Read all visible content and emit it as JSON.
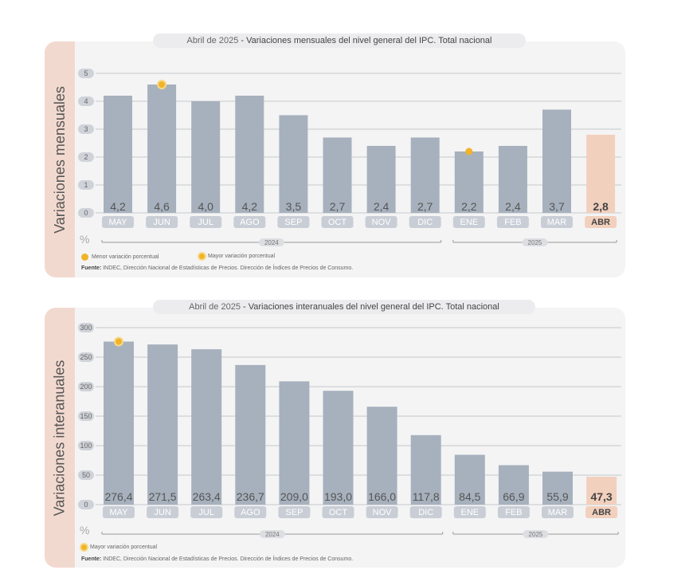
{
  "charts": [
    {
      "title_date": "Abril de 2025",
      "title_text": " - Variaciones mensuales del nivel general del IPC. Total nacional",
      "side_label": "Variaciones mensuales",
      "unit_label": "%",
      "legend_min": "Menor variación porcentual",
      "legend_max": "Mayor variación porcentual",
      "source_label": "Fuente:",
      "source_text": " INDEC, Dirección Nacional de Estadísticas de Precios. Dirección de Índices de Precios de Consumo.",
      "year_labels": [
        "2024",
        "2025"
      ]
    },
    {
      "title_date": "Abril de 2025",
      "title_text": " - Variaciones interanuales del nivel general del IPC. Total nacional",
      "side_label": "Variaciones interanuales",
      "unit_label": "%",
      "legend_max": "Mayor variación porcentual",
      "source_label": "Fuente:",
      "source_text": " INDEC, Dirección Nacional de Estadísticas de Precios. Dirección de Índices de Precios de Consumo.",
      "year_labels": [
        "2024",
        "2025"
      ]
    }
  ],
  "chart_data": [
    {
      "type": "bar",
      "title": "Abril de 2025 - Variaciones mensuales del nivel general del IPC. Total nacional",
      "ylabel": "Variaciones mensuales",
      "categories": [
        "MAY",
        "JUN",
        "JUL",
        "AGO",
        "SEP",
        "OCT",
        "NOV",
        "DIC",
        "ENE",
        "FEB",
        "MAR",
        "ABR"
      ],
      "values": [
        4.2,
        4.6,
        4.0,
        4.2,
        3.5,
        2.7,
        2.4,
        2.7,
        2.2,
        2.4,
        3.7,
        2.8
      ],
      "value_labels": [
        "4,2",
        "4,6",
        "4,0",
        "4,2",
        "3,5",
        "2,7",
        "2,4",
        "2,7",
        "2,2",
        "2,4",
        "3,7",
        "2,8"
      ],
      "yticks": [
        0,
        1,
        2,
        3,
        4,
        5
      ],
      "ylim": [
        0,
        5
      ],
      "highlight_index": 11,
      "max_marker_index": 1,
      "min_marker_index": 8,
      "grid": true,
      "colors": {
        "bar": "#a7b1bd",
        "highlight": "#f2d0be",
        "marker": "#f0b429"
      }
    },
    {
      "type": "bar",
      "title": "Abril de 2025 - Variaciones interanuales del nivel general del IPC. Total nacional",
      "ylabel": "Variaciones interanuales",
      "categories": [
        "MAY",
        "JUN",
        "JUL",
        "AGO",
        "SEP",
        "OCT",
        "NOV",
        "DIC",
        "ENE",
        "FEB",
        "MAR",
        "ABR"
      ],
      "values": [
        276.4,
        271.5,
        263.4,
        236.7,
        209.0,
        193.0,
        166.0,
        117.8,
        84.5,
        66.9,
        55.9,
        47.3
      ],
      "value_labels": [
        "276,4",
        "271,5",
        "263,4",
        "236,7",
        "209,0",
        "193,0",
        "166,0",
        "117,8",
        "84,5",
        "66,9",
        "55,9",
        "47,3"
      ],
      "yticks": [
        0,
        50,
        100,
        150,
        200,
        250,
        300
      ],
      "ylim": [
        0,
        300
      ],
      "highlight_index": 11,
      "max_marker_index": 0,
      "grid": true,
      "colors": {
        "bar": "#a7b1bd",
        "highlight": "#f2d0be",
        "marker": "#f0b429"
      }
    }
  ]
}
